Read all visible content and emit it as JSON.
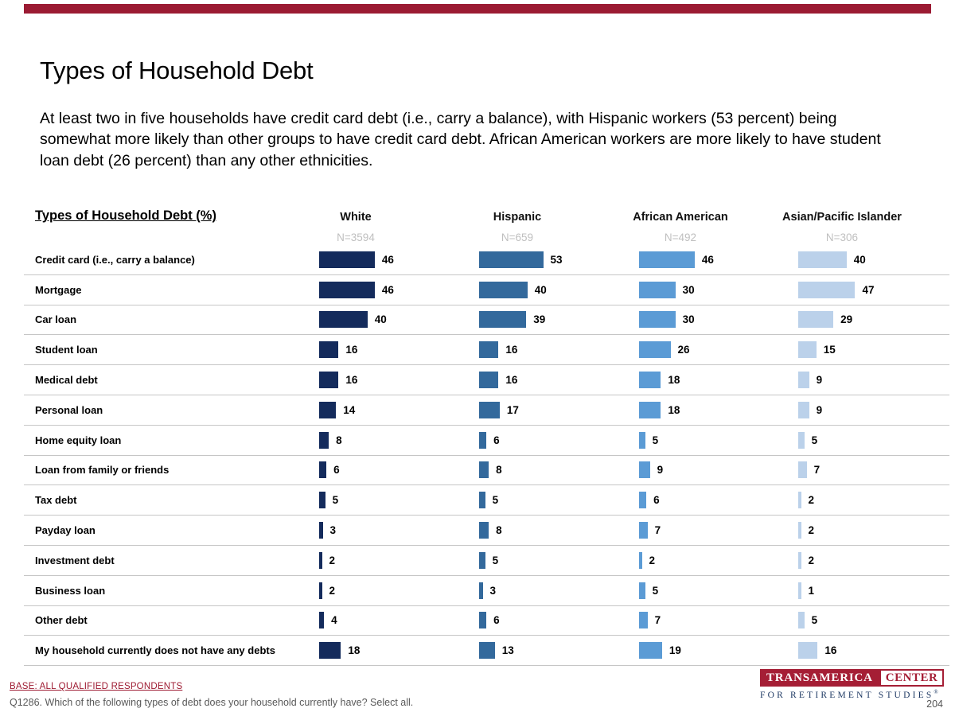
{
  "page": {
    "title": "Types of Household Debt",
    "intro": "At least two in five households have credit card debt (i.e., carry a balance), with Hispanic workers (53 percent) being somewhat more likely than other groups to have credit card debt. African American workers are more likely to have student loan debt (26 percent) than any other ethnicities.",
    "accent_color": "#9B1B33",
    "page_number": "204"
  },
  "footer": {
    "base_line": "BASE: ALL QUALIFIED RESPONDENTS",
    "question_line": "Q1286. Which of the following types of debt does your household currently have? Select all."
  },
  "logo": {
    "line1_left": "TRANSAMERICA",
    "line1_right": "CENTER",
    "line2": "FOR RETIREMENT STUDIES",
    "registered_mark": "®",
    "brand_red": "#A51E35",
    "brand_navy": "#1F3A64"
  },
  "chart_data": {
    "type": "bar",
    "orientation": "horizontal",
    "table_title": "Types of Household Debt (%)",
    "value_labels": true,
    "xlim": [
      0,
      65
    ],
    "grid": "row-separators",
    "n_label_color": "#BFBFBF",
    "categories": [
      "Credit card (i.e., carry a balance)",
      "Mortgage",
      "Car loan",
      "Student loan",
      "Medical debt",
      "Personal loan",
      "Home equity loan",
      "Loan from family or friends",
      "Tax debt",
      "Payday loan",
      "Investment debt",
      "Business loan",
      "Other debt",
      "My household currently does not have any debts"
    ],
    "series": [
      {
        "name": "White",
        "n_label": "N=3594",
        "color": "#142B5C",
        "values": [
          46,
          46,
          40,
          16,
          16,
          14,
          8,
          6,
          5,
          3,
          2,
          2,
          4,
          18
        ]
      },
      {
        "name": "Hispanic",
        "n_label": "N=659",
        "color": "#33699C",
        "values": [
          53,
          40,
          39,
          16,
          16,
          17,
          6,
          8,
          5,
          8,
          5,
          3,
          6,
          13
        ]
      },
      {
        "name": "African American",
        "n_label": "N=492",
        "color": "#5B9BD5",
        "values": [
          46,
          30,
          30,
          26,
          18,
          18,
          5,
          9,
          6,
          7,
          2,
          5,
          7,
          19
        ]
      },
      {
        "name": "Asian/Pacific Islander",
        "n_label": "N=306",
        "color": "#BBD1EA",
        "values": [
          40,
          47,
          29,
          15,
          9,
          9,
          5,
          7,
          2,
          2,
          2,
          1,
          5,
          16
        ]
      }
    ]
  }
}
